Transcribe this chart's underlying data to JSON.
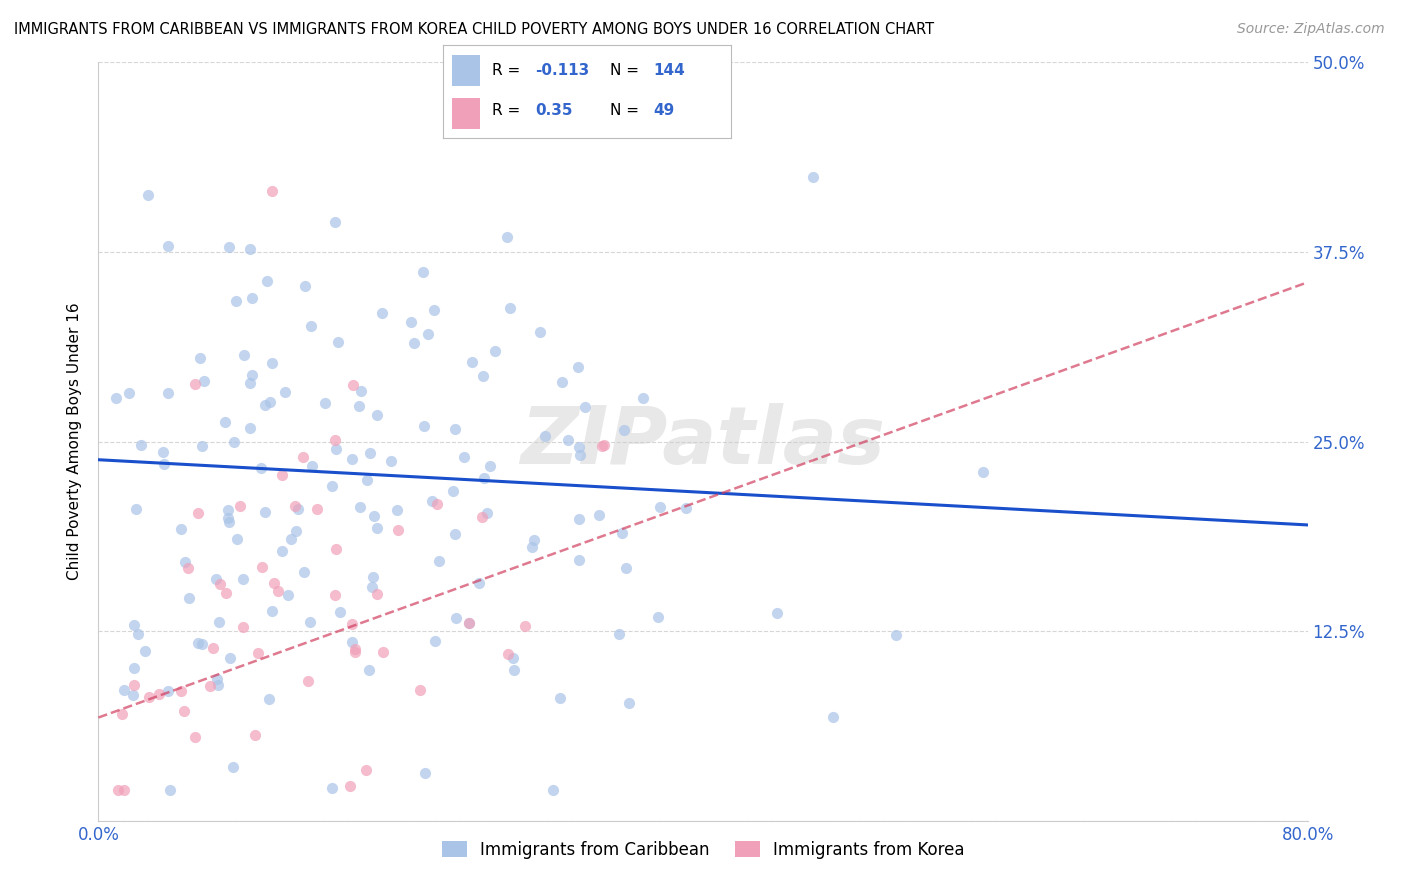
{
  "title": "IMMIGRANTS FROM CARIBBEAN VS IMMIGRANTS FROM KOREA CHILD POVERTY AMONG BOYS UNDER 16 CORRELATION CHART",
  "source": "Source: ZipAtlas.com",
  "ylabel": "Child Poverty Among Boys Under 16",
  "xlim": [
    0,
    0.8
  ],
  "ylim": [
    0,
    0.5
  ],
  "yticks": [
    0.0,
    0.125,
    0.25,
    0.375,
    0.5
  ],
  "ytick_labels": [
    "",
    "12.5%",
    "25.0%",
    "37.5%",
    "50.0%"
  ],
  "xtick_labels": [
    "0.0%",
    "80.0%"
  ],
  "caribbean_R": -0.113,
  "caribbean_N": 144,
  "korea_R": 0.35,
  "korea_N": 49,
  "caribbean_color": "#aac4e8",
  "korea_color": "#f0a0b8",
  "trend_caribbean_color": "#1a4fcc",
  "trend_korea_color": "#d04060",
  "watermark": "ZIPatlas",
  "background_color": "#ffffff",
  "grid_color": "#cccccc",
  "tick_color": "#3366cc",
  "legend_value_color": "#3366cc",
  "trend_caribbean_x0": 0.0,
  "trend_caribbean_y0": 0.238,
  "trend_caribbean_x1": 0.8,
  "trend_caribbean_y1": 0.195,
  "trend_korea_x0": 0.0,
  "trend_korea_y0": 0.068,
  "trend_korea_x1": 0.8,
  "trend_korea_y1": 0.355
}
